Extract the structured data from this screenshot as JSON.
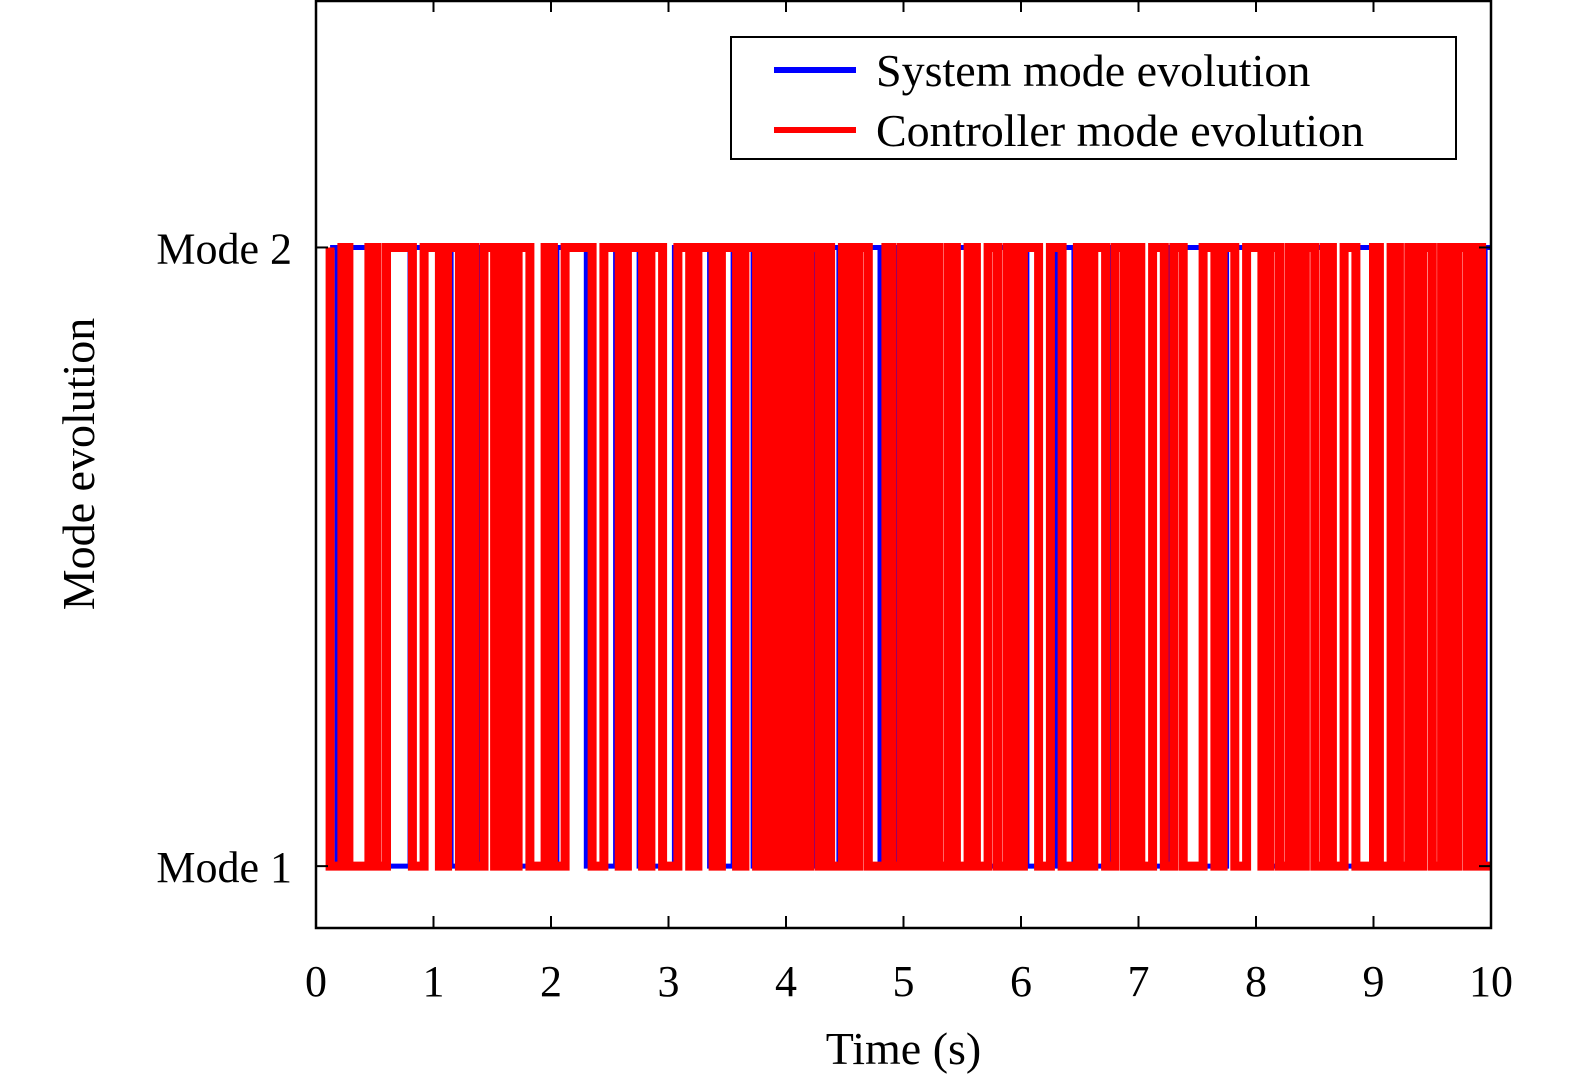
{
  "chart_data": {
    "type": "line",
    "step": true,
    "xlabel": "Time (s)",
    "ylabel": "Mode evolution",
    "xlim": [
      0,
      10
    ],
    "ylim": [
      0.9,
      2.4
    ],
    "x_ticks": [
      0,
      1,
      2,
      3,
      4,
      5,
      6,
      7,
      8,
      9,
      10
    ],
    "x_tick_labels": [
      "0",
      "1",
      "2",
      "3",
      "4",
      "5",
      "6",
      "7",
      "8",
      "9",
      "10"
    ],
    "y_ticks": [
      1,
      2
    ],
    "y_tick_labels": [
      "Mode 1",
      "Mode 2"
    ],
    "grid": false,
    "legend_position": "top-right",
    "series": [
      {
        "name": "System mode evolution",
        "color": "#0000ff",
        "switch_times": [
          0.18,
          0.25,
          0.5,
          0.8,
          1.15,
          1.4,
          1.7,
          2.05,
          2.3,
          2.55,
          2.75,
          3.05,
          3.35,
          3.55,
          3.72,
          3.9,
          4.1,
          4.25,
          4.45,
          4.6,
          4.8,
          4.95,
          5.15,
          5.4,
          5.55,
          5.8,
          6.05,
          6.3,
          6.45,
          6.75,
          6.95,
          7.25,
          7.55,
          7.75,
          8.05,
          8.3,
          8.6,
          8.85,
          9.0,
          9.3,
          9.5,
          9.62,
          9.8,
          9.95
        ],
        "y": [
          2,
          1,
          2,
          1,
          2,
          1,
          2,
          1,
          2,
          1,
          2,
          1,
          2,
          1,
          2,
          1,
          2,
          1,
          2,
          1,
          2,
          1,
          2,
          1,
          2,
          1,
          2,
          1,
          2,
          1,
          2,
          1,
          2,
          1,
          2,
          1,
          2,
          1,
          2,
          1,
          2,
          1,
          2,
          1,
          2
        ]
      },
      {
        "name": "Controller mode evolution",
        "color": "#ff0000",
        "switch_times": [
          0.12,
          0.22,
          0.28,
          0.45,
          0.52,
          0.6,
          0.82,
          0.92,
          1.05,
          1.12,
          1.22,
          1.28,
          1.35,
          1.43,
          1.52,
          1.58,
          1.65,
          1.72,
          1.82,
          1.95,
          2.02,
          2.12,
          2.35,
          2.45,
          2.58,
          2.65,
          2.78,
          2.85,
          2.95,
          3.08,
          3.18,
          3.25,
          3.38,
          3.45,
          3.58,
          3.65,
          3.75,
          3.8,
          3.85,
          3.9,
          3.95,
          4.0,
          4.05,
          4.1,
          4.15,
          4.2,
          4.28,
          4.32,
          4.38,
          4.48,
          4.55,
          4.62,
          4.7,
          4.85,
          4.9,
          4.98,
          5.05,
          5.12,
          5.18,
          5.25,
          5.3,
          5.38,
          5.45,
          5.55,
          5.62,
          5.72,
          5.8,
          5.88,
          5.95,
          6.02,
          6.15,
          6.25,
          6.35,
          6.48,
          6.55,
          6.62,
          6.72,
          6.8,
          6.88,
          6.95,
          7.02,
          7.12,
          7.22,
          7.3,
          7.38,
          7.55,
          7.65,
          7.72,
          7.82,
          7.92,
          8.05,
          8.12,
          8.2,
          8.28,
          8.35,
          8.42,
          8.5,
          8.58,
          8.65,
          8.75,
          8.85,
          9.0,
          9.05,
          9.15,
          9.22,
          9.3,
          9.35,
          9.42,
          9.5,
          9.58,
          9.65,
          9.72,
          9.8,
          9.85,
          9.92
        ],
        "y": [
          2,
          1,
          2,
          1,
          2,
          1,
          2,
          1,
          2,
          1,
          2,
          1,
          2,
          1,
          2,
          1,
          2,
          1,
          2,
          1,
          2,
          1,
          2,
          1,
          2,
          1,
          2,
          1,
          2,
          1,
          2,
          1,
          2,
          1,
          2,
          1,
          2,
          1,
          2,
          1,
          2,
          1,
          2,
          1,
          2,
          1,
          2,
          1,
          2,
          1,
          2,
          1,
          2,
          1,
          2,
          1,
          2,
          1,
          2,
          1,
          2,
          1,
          2,
          1,
          2,
          1,
          2,
          1,
          2,
          1,
          2,
          1,
          2,
          1,
          2,
          1,
          2,
          1,
          2,
          1,
          2,
          1,
          2,
          1,
          2,
          1,
          2,
          1,
          2,
          1,
          2,
          1,
          2,
          1,
          2,
          1,
          2,
          1,
          2,
          1,
          2,
          1,
          2,
          1,
          2,
          1,
          2,
          1,
          2,
          1,
          2,
          1,
          2,
          1,
          2,
          1
        ]
      }
    ]
  }
}
